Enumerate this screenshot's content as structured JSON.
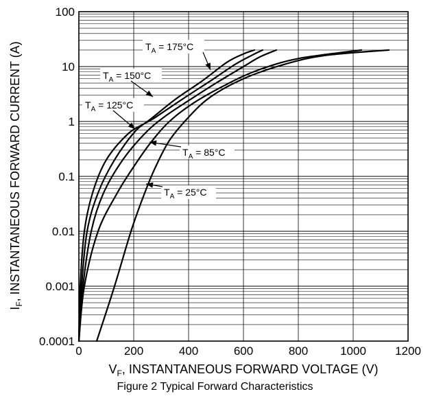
{
  "chart_data": {
    "type": "line",
    "caption": "Figure 2 Typical Forward Characteristics",
    "xlabel": {
      "main": "V",
      "sub": "F",
      "rest": ", INSTANTANEOUS FORWARD VOLTAGE (V)"
    },
    "ylabel": {
      "main": "I",
      "sub": "F",
      "rest": ", INSTANTANEOUS FORWARD CURRENT (A)"
    },
    "xlim": [
      0,
      1200
    ],
    "ylim": [
      0.0001,
      100
    ],
    "yscale": "log",
    "grid": true,
    "x_ticks": [
      "0",
      "200",
      "400",
      "600",
      "800",
      "1000",
      "1200"
    ],
    "y_ticks": [
      "100",
      "10",
      "1",
      "0.1",
      "0.01",
      "0.001",
      "0.0001"
    ],
    "series": [
      {
        "name": "T_A = 175°C",
        "label_main": "T",
        "label_sub": "A",
        "label_rest": " = 175°C",
        "points": [
          [
            0,
            0.0001
          ],
          [
            5,
            0.001
          ],
          [
            20,
            0.01
          ],
          [
            50,
            0.05
          ],
          [
            100,
            0.2
          ],
          [
            180,
            0.6
          ],
          [
            250,
            1.0
          ],
          [
            350,
            2.5
          ],
          [
            450,
            5.5
          ],
          [
            540,
            12
          ],
          [
            600,
            17
          ],
          [
            640,
            20
          ]
        ]
      },
      {
        "name": "T_A = 150°C",
        "label_main": "T",
        "label_sub": "A",
        "label_rest": " = 150°C",
        "points": [
          [
            0,
            0.0001
          ],
          [
            10,
            0.001
          ],
          [
            30,
            0.01
          ],
          [
            70,
            0.05
          ],
          [
            130,
            0.2
          ],
          [
            210,
            0.7
          ],
          [
            280,
            1.2
          ],
          [
            380,
            2.6
          ],
          [
            480,
            5.5
          ],
          [
            570,
            11
          ],
          [
            630,
            16
          ],
          [
            670,
            20
          ]
        ]
      },
      {
        "name": "T_A = 125°C",
        "label_main": "T",
        "label_sub": "A",
        "label_rest": " = 125°C",
        "points": [
          [
            0,
            0.0001
          ],
          [
            15,
            0.001
          ],
          [
            45,
            0.01
          ],
          [
            90,
            0.05
          ],
          [
            160,
            0.2
          ],
          [
            240,
            0.6
          ],
          [
            310,
            1.2
          ],
          [
            400,
            2.4
          ],
          [
            500,
            5.0
          ],
          [
            600,
            10
          ],
          [
            660,
            15
          ],
          [
            720,
            20
          ]
        ]
      },
      {
        "name": "T_A = 85°C",
        "label_main": "T",
        "label_sub": "A",
        "label_rest": " = 85°C",
        "points": [
          [
            0,
            0.0001
          ],
          [
            20,
            0.001
          ],
          [
            70,
            0.01
          ],
          [
            140,
            0.05
          ],
          [
            200,
            0.15
          ],
          [
            260,
            0.4
          ],
          [
            330,
            1.0
          ],
          [
            420,
            2.2
          ],
          [
            530,
            4.5
          ],
          [
            650,
            8.5
          ],
          [
            800,
            14
          ],
          [
            1030,
            20
          ]
        ]
      },
      {
        "name": "T_A = 25°C",
        "label_main": "T",
        "label_sub": "A",
        "label_rest": " = 25°C",
        "points": [
          [
            65,
            0.0001
          ],
          [
            130,
            0.001
          ],
          [
            190,
            0.01
          ],
          [
            240,
            0.05
          ],
          [
            280,
            0.15
          ],
          [
            330,
            0.45
          ],
          [
            400,
            1.2
          ],
          [
            480,
            2.8
          ],
          [
            600,
            6.0
          ],
          [
            750,
            11
          ],
          [
            900,
            16
          ],
          [
            1130,
            20
          ]
        ]
      }
    ]
  }
}
